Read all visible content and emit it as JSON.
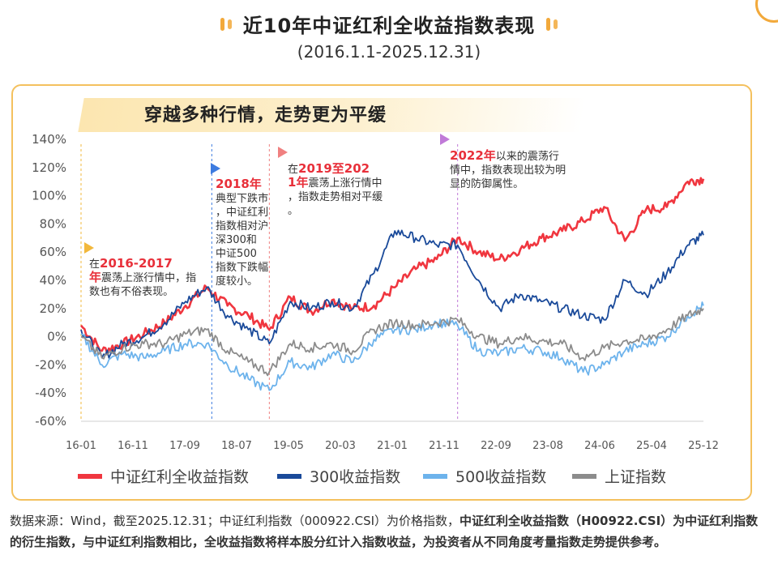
{
  "header": {
    "title": "近10年中证红利全收益指数表现",
    "subtitle": "(2016.1.1-2025.12.31)"
  },
  "banner": "穿越多种行情，走势更为平缓",
  "annotations": [
    {
      "pre": "在",
      "hl": "2016-2017年",
      "post": "震荡上涨行情中，指数也有不俗表现。",
      "color": "#f2b83c"
    },
    {
      "pre": "",
      "hl": "2018年",
      "post": "典型下跌市，中证红利指数相对沪深300和中证500指数下跌幅度较小。",
      "color": "#3d7be0"
    },
    {
      "pre": "在",
      "hl": "2019至2021年",
      "post": "震荡上涨行情中，指数走势相对平缓。",
      "color": "#f08080"
    },
    {
      "pre": "",
      "hl": "2022年",
      "post": "以来的震荡行情中，指数表现出较为明显的防御属性。",
      "color": "#c07ad8"
    }
  ],
  "chart_data": {
    "type": "line",
    "title": "",
    "xlabel": "",
    "ylabel": "",
    "ylim": [
      -60,
      140
    ],
    "y_ticks": [
      "140%",
      "120%",
      "100%",
      "80%",
      "60%",
      "40%",
      "20%",
      "0%",
      "-20%",
      "-40%",
      "-60%"
    ],
    "x_ticks": [
      "16-01",
      "16-11",
      "17-09",
      "18-07",
      "19-05",
      "20-03",
      "21-01",
      "21-11",
      "22-09",
      "23-08",
      "24-06",
      "25-04",
      "25-12"
    ],
    "x": [
      "16-01",
      "16-05",
      "16-09",
      "17-01",
      "17-05",
      "17-09",
      "18-01",
      "18-05",
      "18-09",
      "19-01",
      "19-05",
      "19-09",
      "20-01",
      "20-05",
      "20-09",
      "21-01",
      "21-05",
      "21-09",
      "22-01",
      "22-05",
      "22-09",
      "23-01",
      "23-05",
      "23-09",
      "24-01",
      "24-05",
      "24-09",
      "25-01",
      "25-05",
      "25-09",
      "25-12"
    ],
    "series": [
      {
        "name": "中证红利全收益指数",
        "color": "#f0363f",
        "values": [
          8,
          -10,
          -5,
          2,
          10,
          22,
          35,
          22,
          15,
          5,
          28,
          18,
          26,
          20,
          22,
          35,
          48,
          55,
          70,
          60,
          55,
          62,
          70,
          75,
          82,
          92,
          68,
          90,
          92,
          110,
          112
        ]
      },
      {
        "name": "300收益指数",
        "color": "#1a4a9a",
        "values": [
          5,
          -15,
          -5,
          0,
          10,
          25,
          35,
          15,
          5,
          -5,
          25,
          20,
          25,
          20,
          45,
          75,
          70,
          65,
          65,
          40,
          20,
          30,
          25,
          20,
          15,
          12,
          40,
          30,
          45,
          65,
          72
        ]
      },
      {
        "name": "500收益指数",
        "color": "#6db3ec",
        "values": [
          2,
          -20,
          -12,
          -15,
          -10,
          -5,
          -5,
          -20,
          -30,
          -38,
          -18,
          -22,
          -12,
          -18,
          -2,
          5,
          5,
          10,
          8,
          -10,
          -12,
          -8,
          -10,
          -15,
          -25,
          -20,
          -10,
          -5,
          0,
          15,
          22
        ]
      },
      {
        "name": "上证指数",
        "color": "#8c8c8c",
        "values": [
          0,
          -15,
          -8,
          -5,
          -5,
          2,
          5,
          -10,
          -18,
          -25,
          -5,
          -8,
          -5,
          -10,
          5,
          10,
          8,
          10,
          12,
          0,
          -5,
          0,
          -3,
          -5,
          -15,
          -8,
          -3,
          -2,
          5,
          15,
          20
        ]
      }
    ],
    "vlines": [
      {
        "x": "16-01",
        "color": "#f2b83c"
      },
      {
        "x": "18-02",
        "color": "#3d7be0"
      },
      {
        "x": "19-01",
        "color": "#f08080"
      },
      {
        "x": "22-01",
        "color": "#c07ad8"
      }
    ],
    "grid": false,
    "legend": "bottom"
  },
  "source": {
    "part1": "数据来源：Wind，截至2025.12.31；中证红利指数（000922.CSI）为价格指数，",
    "part2": "中证红利全收益指数（H00922.CSI）为中证红利指数的衍生指数，与中证红利指数相比，全收益指数将样本股分红计入指数收益，为投资者从不同角度考量指数走势提供参考。"
  }
}
